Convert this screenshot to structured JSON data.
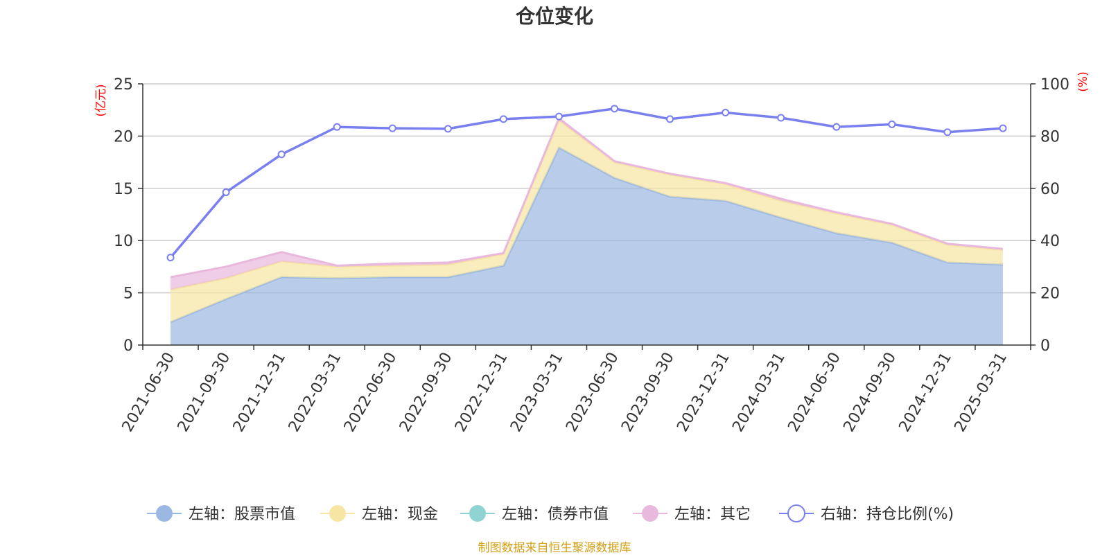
{
  "title": "仓位变化",
  "source": "制图数据来自恒生聚源数据库",
  "left_unit": "(亿元)",
  "right_unit": "(%)",
  "colors": {
    "stock": "#9bb8e3",
    "cash": "#f7e6a3",
    "bond": "#8fd3d3",
    "other": "#e9b8dd",
    "ratio": "#7a7ff0"
  },
  "chart_data": {
    "type": "area",
    "title": "仓位变化",
    "categories": [
      "2021-06-30",
      "2021-09-30",
      "2021-12-31",
      "2022-03-31",
      "2022-06-30",
      "2022-09-30",
      "2022-12-31",
      "2023-03-31",
      "2023-06-30",
      "2023-09-30",
      "2023-12-31",
      "2024-03-31",
      "2024-06-30",
      "2024-09-30",
      "2024-12-31",
      "2025-03-31"
    ],
    "left_axis": {
      "unit": "(亿元)",
      "ylim": [
        0,
        25
      ],
      "ticks": [
        0,
        5,
        10,
        15,
        20,
        25
      ]
    },
    "right_axis": {
      "unit": "(%)",
      "ylim": [
        0,
        100
      ],
      "ticks": [
        0,
        20,
        40,
        60,
        80,
        100
      ]
    },
    "stacked": true,
    "grid": true,
    "legend_position": "bottom",
    "series": [
      {
        "name": "左轴：股票市值",
        "axis": "left",
        "type": "area",
        "values": [
          2.2,
          4.4,
          6.5,
          6.4,
          6.5,
          6.5,
          7.6,
          18.9,
          16.0,
          14.2,
          13.8,
          12.2,
          10.7,
          9.8,
          7.9,
          7.7
        ]
      },
      {
        "name": "左轴：现金",
        "axis": "left",
        "type": "area",
        "values": [
          3.1,
          2.0,
          1.5,
          1.1,
          1.1,
          1.2,
          1.1,
          2.6,
          1.5,
          2.1,
          1.6,
          1.6,
          1.9,
          1.7,
          1.7,
          1.4
        ]
      },
      {
        "name": "左轴：债券市值",
        "axis": "left",
        "type": "area",
        "values": [
          0,
          0,
          0,
          0,
          0,
          0,
          0,
          0,
          0,
          0,
          0,
          0,
          0,
          0,
          0,
          0
        ]
      },
      {
        "name": "左轴：其它",
        "axis": "left",
        "type": "area",
        "values": [
          1.2,
          1.1,
          0.9,
          0.1,
          0.2,
          0.2,
          0.1,
          0.2,
          0.1,
          0.1,
          0.1,
          0.2,
          0.1,
          0.1,
          0.1,
          0.1
        ]
      },
      {
        "name": "右轴：持仓比例(%)",
        "axis": "right",
        "type": "line",
        "values": [
          33.5,
          58.5,
          73.0,
          83.5,
          83.0,
          82.8,
          86.5,
          87.5,
          90.5,
          86.5,
          89.0,
          87.0,
          83.5,
          84.5,
          81.5,
          83.0
        ]
      }
    ]
  }
}
